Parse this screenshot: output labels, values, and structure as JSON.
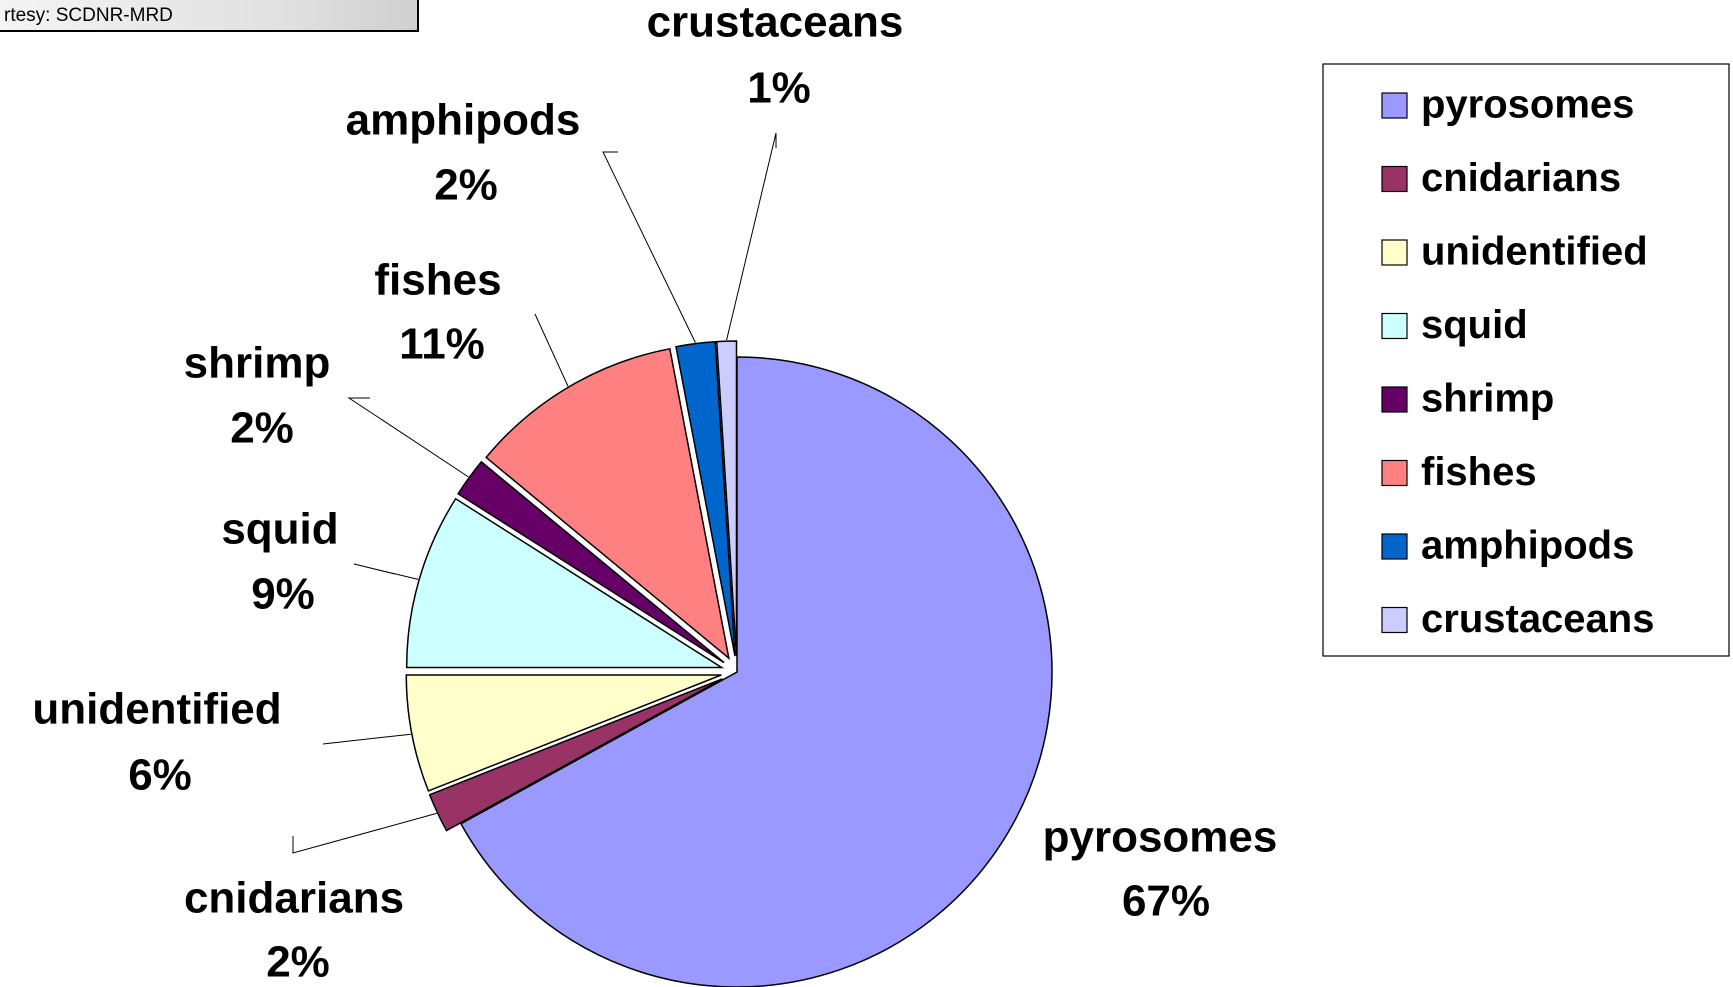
{
  "image_credit": "rtesy: SCDNR-MRD",
  "chart_data": {
    "type": "pie",
    "categories": [
      "pyrosomes",
      "cnidarians",
      "unidentified",
      "squid",
      "shrimp",
      "fishes",
      "amphipods",
      "crustaceans"
    ],
    "values": [
      67,
      2,
      6,
      9,
      2,
      11,
      2,
      1
    ],
    "value_labels": [
      "67%",
      "2%",
      "6%",
      "9%",
      "2%",
      "11%",
      "2%",
      "1%"
    ],
    "colors": [
      "#9999ff",
      "#993366",
      "#ffffcc",
      "#ccffff",
      "#660066",
      "#ff8080",
      "#0066cc",
      "#ccccff"
    ],
    "legend": "right"
  }
}
